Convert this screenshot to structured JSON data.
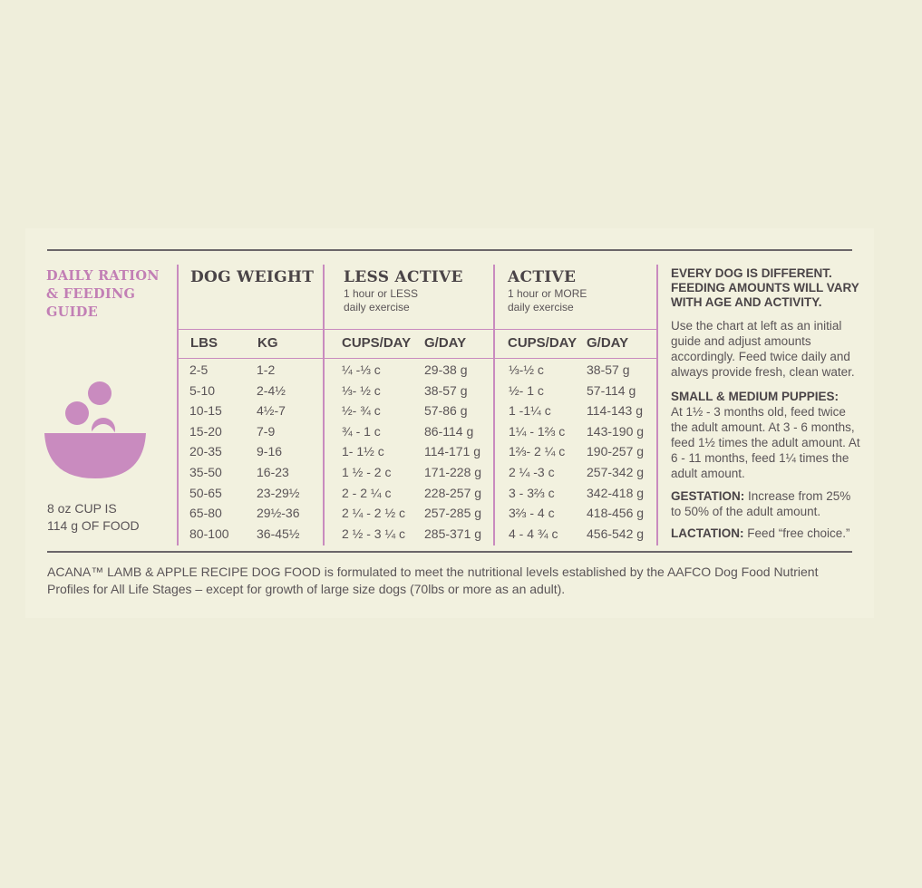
{
  "guide": {
    "title": "DAILY RATION\n& FEEDING\nGUIDE",
    "cup_note": "8 oz CUP IS\n114 g OF FOOD"
  },
  "columns": {
    "dog_weight": "DOG WEIGHT",
    "less_active": "LESS ACTIVE",
    "less_active_sub": "1 hour or LESS\ndaily exercise",
    "active": "ACTIVE",
    "active_sub": "1 hour or MORE\ndaily exercise"
  },
  "subheaders": {
    "lbs": "LBS",
    "kg": "KG",
    "less_cups": "CUPS/DAY",
    "less_g": "G/DAY",
    "active_cups": "CUPS/DAY",
    "active_g": "G/DAY"
  },
  "rows": [
    {
      "lbs": "2-5",
      "kg": "1-2",
      "less_cups": "¼ -⅓ c",
      "less_g": "29-38 g",
      "active_cups": "⅓-½ c",
      "active_g": "38-57 g"
    },
    {
      "lbs": "5-10",
      "kg": "2-4½",
      "less_cups": "⅓- ½ c",
      "less_g": "38-57 g",
      "active_cups": "½- 1 c",
      "active_g": "57-114 g"
    },
    {
      "lbs": "10-15",
      "kg": "4½-7",
      "less_cups": "½- ¾ c",
      "less_g": "57-86 g",
      "active_cups": "1 -1¼ c",
      "active_g": "114-143 g"
    },
    {
      "lbs": "15-20",
      "kg": "7-9",
      "less_cups": "¾ - 1 c",
      "less_g": "86-114 g",
      "active_cups": "1¼ - 1⅔ c",
      "active_g": "143-190 g"
    },
    {
      "lbs": "20-35",
      "kg": "9-16",
      "less_cups": "1- 1½ c",
      "less_g": "114-171 g",
      "active_cups": "1⅔- 2 ¼ c",
      "active_g": "190-257 g"
    },
    {
      "lbs": "35-50",
      "kg": "16-23",
      "less_cups": "1 ½ - 2 c",
      "less_g": "171-228 g",
      "active_cups": "2 ¼ -3 c",
      "active_g": "257-342 g"
    },
    {
      "lbs": "50-65",
      "kg": "23-29½",
      "less_cups": "2 - 2 ¼ c",
      "less_g": "228-257 g",
      "active_cups": "3 - 3⅔ c",
      "active_g": "342-418 g"
    },
    {
      "lbs": "65-80",
      "kg": "29½-36",
      "less_cups": "2 ¼ - 2 ½ c",
      "less_g": "257-285 g",
      "active_cups": "3⅔ - 4 c",
      "active_g": "418-456 g"
    },
    {
      "lbs": "80-100",
      "kg": "36-45½",
      "less_cups": "2 ½ - 3 ¼ c",
      "less_g": "285-371 g",
      "active_cups": "4 - 4 ¾ c",
      "active_g": "456-542 g"
    }
  ],
  "notes": {
    "headline": "EVERY DOG IS DIFFERENT.\nFEEDING AMOUNTS WILL VARY\nWITH AGE AND ACTIVITY.",
    "intro": "Use the chart at left as an initial guide and adjust amounts accordingly. Feed twice daily and always provide fresh, clean water.",
    "puppies_label": "SMALL & MEDIUM PUPPIES:",
    "puppies_text": "At 1½ - 3 months old, feed twice the adult amount. At 3 - 6 months, feed 1½ times the adult amount. At 6 - 11 months, feed 1¼ times the adult amount.",
    "gestation_label": "GESTATION:",
    "gestation_text": "Increase from 25% to 50% of the adult amount.",
    "lactation_label": "LACTATION:",
    "lactation_text": "Feed “free choice.”"
  },
  "footnote": "ACANA™ LAMB & APPLE RECIPE DOG FOOD is formulated to meet the nutritional levels established by the AAFCO Dog Food Nutrient Profiles for All Life Stages – except for growth of large size dogs (70lbs or more as an adult).",
  "colors": {
    "accent": "#c27fb5",
    "bowl": "#c98bbf",
    "text": "#4a4447",
    "background": "#efeedb"
  }
}
